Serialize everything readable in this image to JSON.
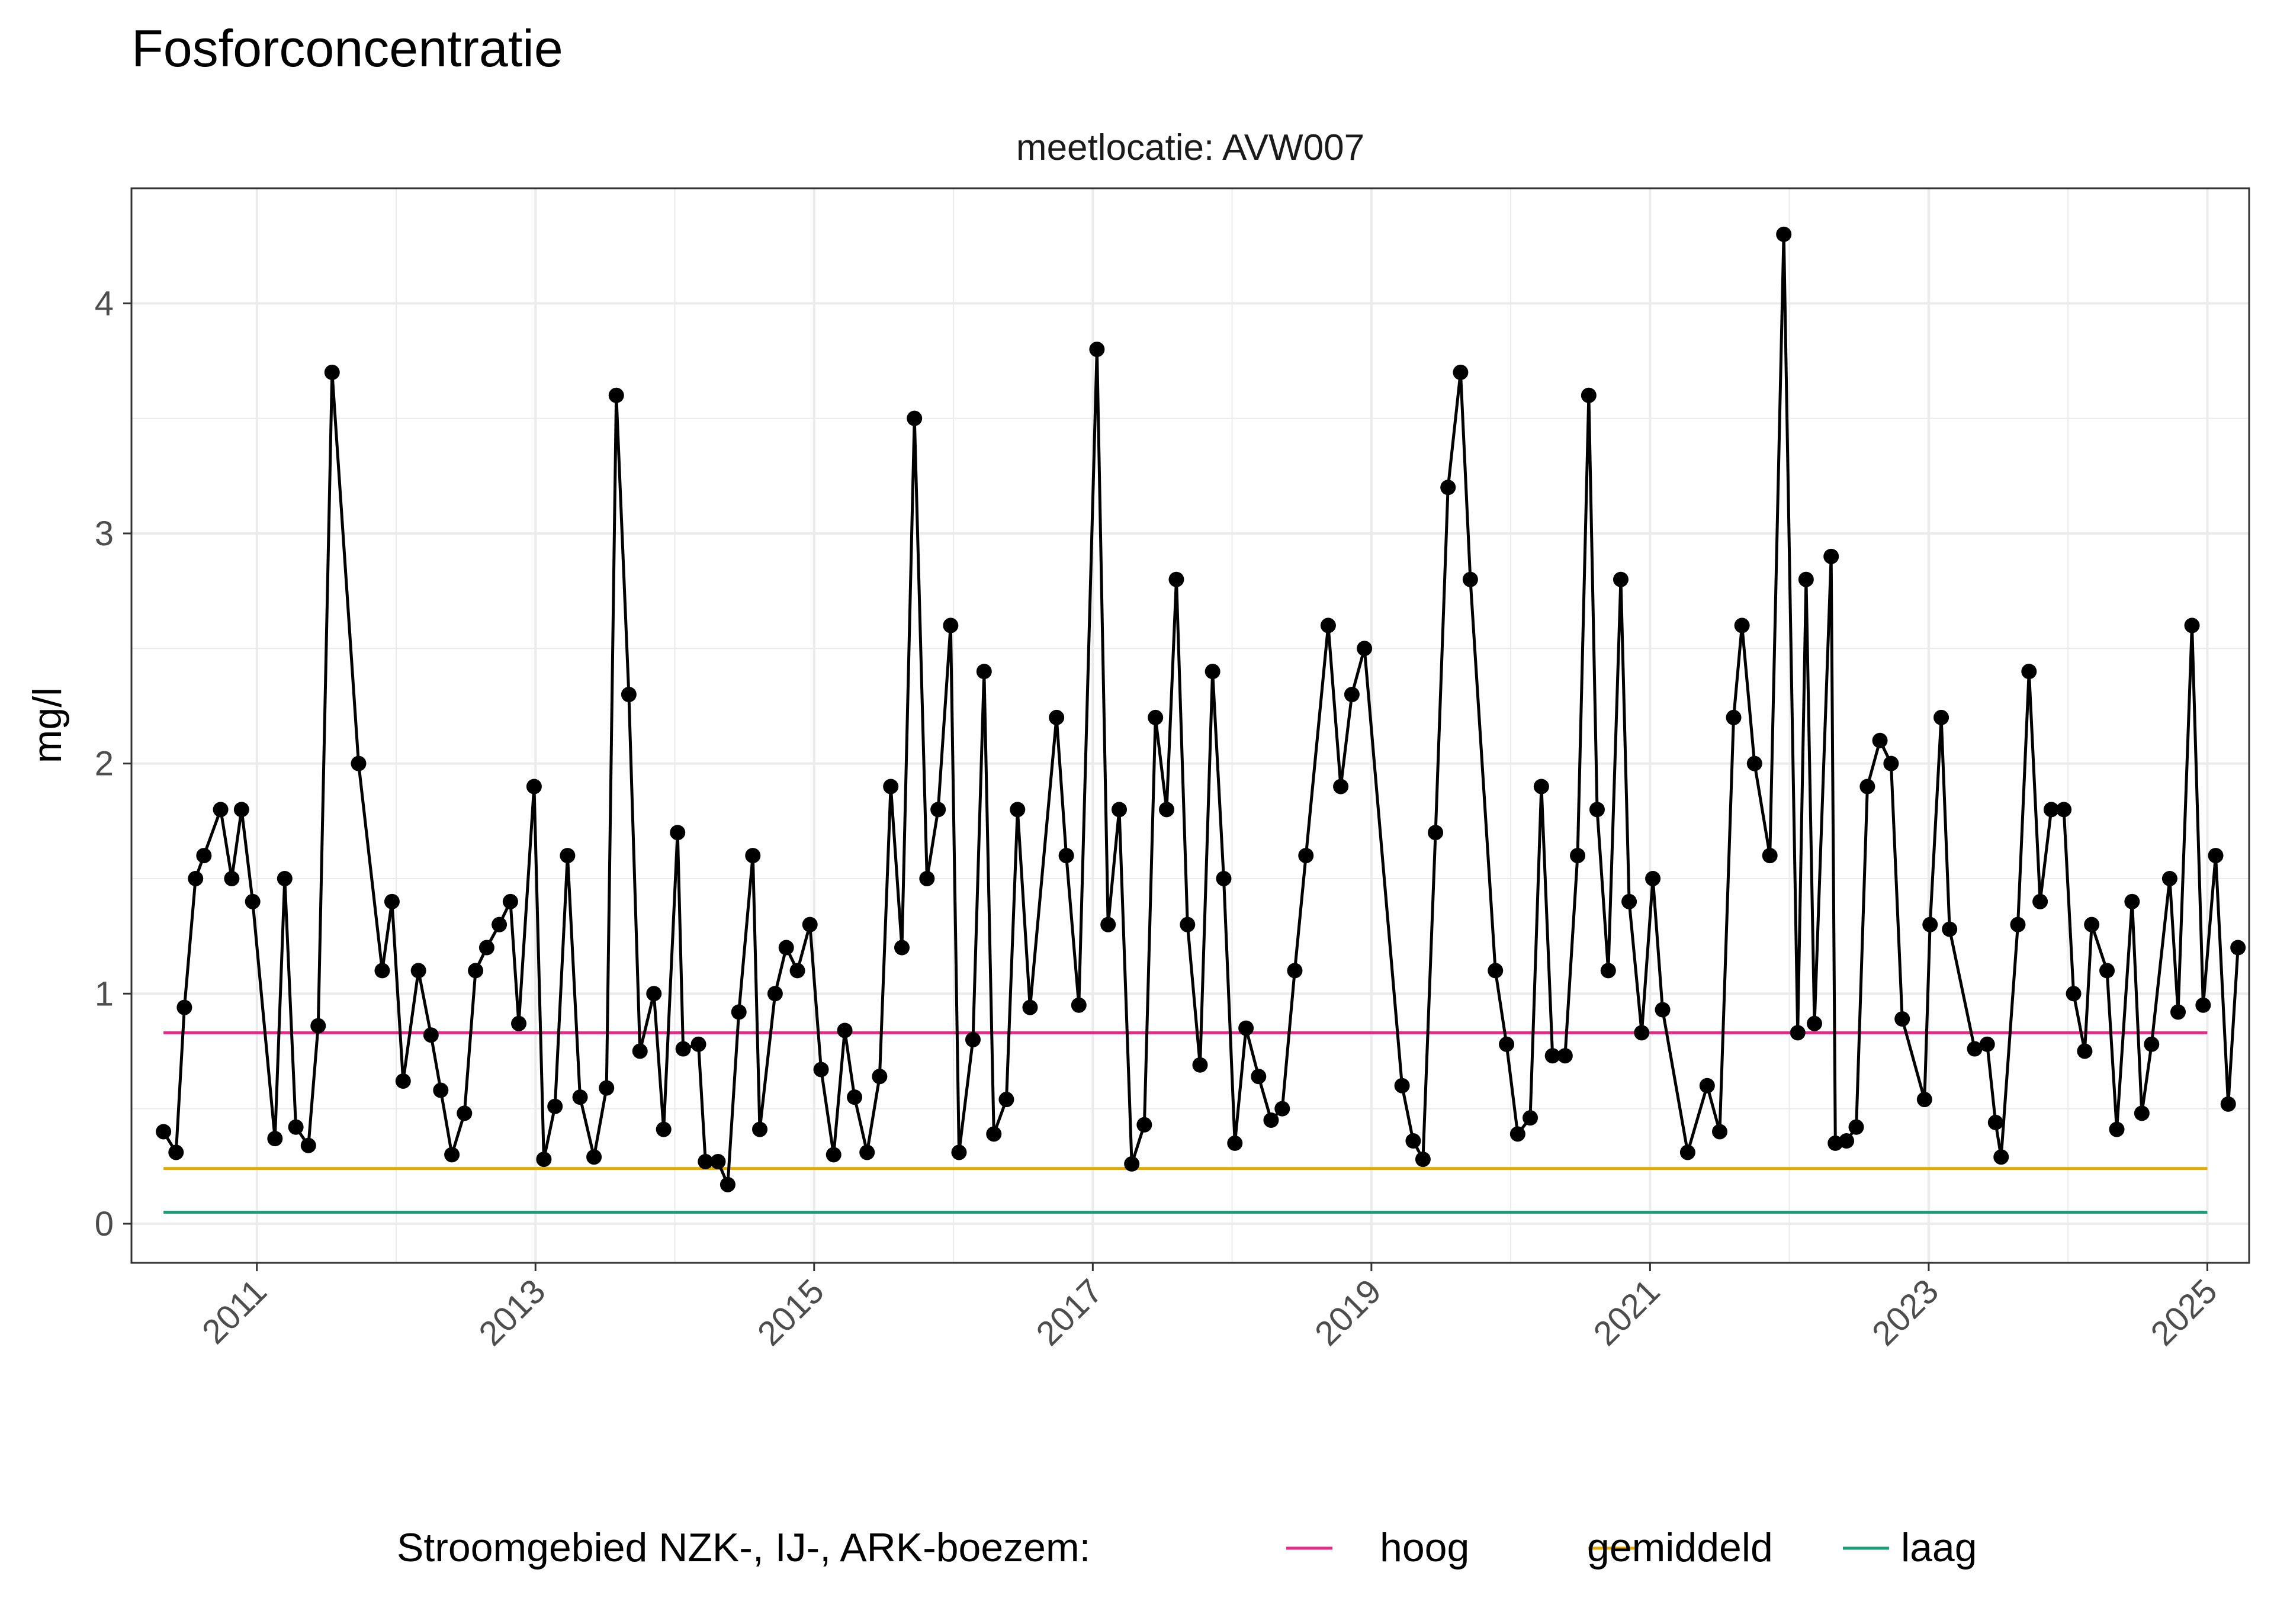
{
  "chart_data": {
    "type": "line",
    "title": "Fosforconcentratie",
    "subtitle": "meetlocatie: AVW007",
    "xlabel": "",
    "ylabel": "mg/l",
    "xlim": [
      2010.1,
      2025.3
    ],
    "ylim": [
      -0.17,
      4.5
    ],
    "x_ticks": [
      "2011",
      "2013",
      "2015",
      "2017",
      "2019",
      "2021",
      "2023",
      "2025"
    ],
    "y_ticks": [
      "0",
      "1",
      "2",
      "3",
      "4"
    ],
    "grid": true,
    "legend": {
      "position": "bottom",
      "title": "Stroomgebied NZK-, IJ-, ARK-boezem:",
      "items": [
        {
          "label": "hoog",
          "color": "#e7298a"
        },
        {
          "label": "gemiddeld",
          "color": "#e6ab02"
        },
        {
          "label": "laag",
          "color": "#1b9e77"
        }
      ]
    },
    "reference_lines": [
      {
        "name": "hoog",
        "value": 0.83,
        "x_range": [
          2010.33,
          2025.0
        ],
        "color": "#e7298a"
      },
      {
        "name": "gemiddeld",
        "value": 0.24,
        "x_range": [
          2010.33,
          2025.0
        ],
        "color": "#e6ab02"
      },
      {
        "name": "laag",
        "value": 0.05,
        "x_range": [
          2010.33,
          2025.0
        ],
        "color": "#1b9e77"
      }
    ],
    "series": [
      {
        "color": "#000000",
        "points": [
          [
            2010.33,
            0.4
          ],
          [
            2010.42,
            0.31
          ],
          [
            2010.48,
            0.94
          ],
          [
            2010.56,
            1.5
          ],
          [
            2010.62,
            1.6
          ],
          [
            2010.74,
            1.8
          ],
          [
            2010.82,
            1.5
          ],
          [
            2010.89,
            1.8
          ],
          [
            2010.97,
            1.4
          ],
          [
            2011.13,
            0.37
          ],
          [
            2011.2,
            1.5
          ],
          [
            2011.28,
            0.42
          ],
          [
            2011.37,
            0.34
          ],
          [
            2011.44,
            0.86
          ],
          [
            2011.54,
            3.7
          ],
          [
            2011.73,
            2.0
          ],
          [
            2011.9,
            1.1
          ],
          [
            2011.97,
            1.4
          ],
          [
            2012.05,
            0.62
          ],
          [
            2012.16,
            1.1
          ],
          [
            2012.25,
            0.82
          ],
          [
            2012.32,
            0.58
          ],
          [
            2012.4,
            0.3
          ],
          [
            2012.49,
            0.48
          ],
          [
            2012.57,
            1.1
          ],
          [
            2012.65,
            1.2
          ],
          [
            2012.74,
            1.3
          ],
          [
            2012.82,
            1.4
          ],
          [
            2012.88,
            0.87
          ],
          [
            2012.99,
            1.9
          ],
          [
            2013.06,
            0.28
          ],
          [
            2013.14,
            0.51
          ],
          [
            2013.23,
            1.6
          ],
          [
            2013.32,
            0.55
          ],
          [
            2013.42,
            0.29
          ],
          [
            2013.51,
            0.59
          ],
          [
            2013.58,
            3.6
          ],
          [
            2013.67,
            2.3
          ],
          [
            2013.75,
            0.75
          ],
          [
            2013.85,
            1.0
          ],
          [
            2013.92,
            0.41
          ],
          [
            2014.02,
            1.7
          ],
          [
            2014.06,
            0.76
          ],
          [
            2014.17,
            0.78
          ],
          [
            2014.22,
            0.27
          ],
          [
            2014.31,
            0.27
          ],
          [
            2014.38,
            0.17
          ],
          [
            2014.46,
            0.92
          ],
          [
            2014.56,
            1.6
          ],
          [
            2014.61,
            0.41
          ],
          [
            2014.72,
            1.0
          ],
          [
            2014.8,
            1.2
          ],
          [
            2014.88,
            1.1
          ],
          [
            2014.97,
            1.3
          ],
          [
            2015.05,
            0.67
          ],
          [
            2015.14,
            0.3
          ],
          [
            2015.22,
            0.84
          ],
          [
            2015.29,
            0.55
          ],
          [
            2015.38,
            0.31
          ],
          [
            2015.47,
            0.64
          ],
          [
            2015.55,
            1.9
          ],
          [
            2015.63,
            1.2
          ],
          [
            2015.72,
            3.5
          ],
          [
            2015.81,
            1.5
          ],
          [
            2015.89,
            1.8
          ],
          [
            2015.98,
            2.6
          ],
          [
            2016.04,
            0.31
          ],
          [
            2016.14,
            0.8
          ],
          [
            2016.22,
            2.4
          ],
          [
            2016.29,
            0.39
          ],
          [
            2016.38,
            0.54
          ],
          [
            2016.46,
            1.8
          ],
          [
            2016.55,
            0.94
          ],
          [
            2016.74,
            2.2
          ],
          [
            2016.81,
            1.6
          ],
          [
            2016.9,
            0.95
          ],
          [
            2017.03,
            3.8
          ],
          [
            2017.11,
            1.3
          ],
          [
            2017.19,
            1.8
          ],
          [
            2017.28,
            0.26
          ],
          [
            2017.37,
            0.43
          ],
          [
            2017.45,
            2.2
          ],
          [
            2017.53,
            1.8
          ],
          [
            2017.6,
            2.8
          ],
          [
            2017.68,
            1.3
          ],
          [
            2017.77,
            0.69
          ],
          [
            2017.86,
            2.4
          ],
          [
            2017.94,
            1.5
          ],
          [
            2018.02,
            0.35
          ],
          [
            2018.1,
            0.85
          ],
          [
            2018.19,
            0.64
          ],
          [
            2018.28,
            0.45
          ],
          [
            2018.36,
            0.5
          ],
          [
            2018.45,
            1.1
          ],
          [
            2018.53,
            1.6
          ],
          [
            2018.69,
            2.6
          ],
          [
            2018.78,
            1.9
          ],
          [
            2018.86,
            2.3
          ],
          [
            2018.95,
            2.5
          ],
          [
            2019.22,
            0.6
          ],
          [
            2019.3,
            0.36
          ],
          [
            2019.37,
            0.28
          ],
          [
            2019.46,
            1.7
          ],
          [
            2019.55,
            3.2
          ],
          [
            2019.64,
            3.7
          ],
          [
            2019.71,
            2.8
          ],
          [
            2019.89,
            1.1
          ],
          [
            2019.97,
            0.78
          ],
          [
            2020.05,
            0.39
          ],
          [
            2020.14,
            0.46
          ],
          [
            2020.22,
            1.9
          ],
          [
            2020.3,
            0.73
          ],
          [
            2020.39,
            0.73
          ],
          [
            2020.48,
            1.6
          ],
          [
            2020.56,
            3.6
          ],
          [
            2020.62,
            1.8
          ],
          [
            2020.7,
            1.1
          ],
          [
            2020.79,
            2.8
          ],
          [
            2020.85,
            1.4
          ],
          [
            2020.94,
            0.83
          ],
          [
            2021.02,
            1.5
          ],
          [
            2021.09,
            0.93
          ],
          [
            2021.27,
            0.31
          ],
          [
            2021.41,
            0.6
          ],
          [
            2021.5,
            0.4
          ],
          [
            2021.6,
            2.2
          ],
          [
            2021.66,
            2.6
          ],
          [
            2021.75,
            2.0
          ],
          [
            2021.86,
            1.6
          ],
          [
            2021.96,
            4.3
          ],
          [
            2022.06,
            0.83
          ],
          [
            2022.12,
            2.8
          ],
          [
            2022.18,
            0.87
          ],
          [
            2022.3,
            2.9
          ],
          [
            2022.33,
            0.35
          ],
          [
            2022.41,
            0.36
          ],
          [
            2022.48,
            0.42
          ],
          [
            2022.56,
            1.9
          ],
          [
            2022.65,
            2.1
          ],
          [
            2022.73,
            2.0
          ],
          [
            2022.81,
            0.89
          ],
          [
            2022.97,
            0.54
          ],
          [
            2023.01,
            1.3
          ],
          [
            2023.09,
            2.2
          ],
          [
            2023.15,
            1.28
          ],
          [
            2023.33,
            0.76
          ],
          [
            2023.42,
            0.78
          ],
          [
            2023.48,
            0.44
          ],
          [
            2023.52,
            0.29
          ],
          [
            2023.64,
            1.3
          ],
          [
            2023.72,
            2.4
          ],
          [
            2023.8,
            1.4
          ],
          [
            2023.88,
            1.8
          ],
          [
            2023.97,
            1.8
          ],
          [
            2024.04,
            1.0
          ],
          [
            2024.12,
            0.75
          ],
          [
            2024.17,
            1.3
          ],
          [
            2024.28,
            1.1
          ],
          [
            2024.35,
            0.41
          ],
          [
            2024.46,
            1.4
          ],
          [
            2024.53,
            0.48
          ],
          [
            2024.6,
            0.78
          ],
          [
            2024.73,
            1.5
          ],
          [
            2024.79,
            0.92
          ],
          [
            2024.89,
            2.6
          ],
          [
            2024.97,
            0.95
          ],
          [
            2025.06,
            1.6
          ],
          [
            2025.15,
            0.52
          ],
          [
            2025.22,
            1.2
          ]
        ]
      }
    ]
  }
}
